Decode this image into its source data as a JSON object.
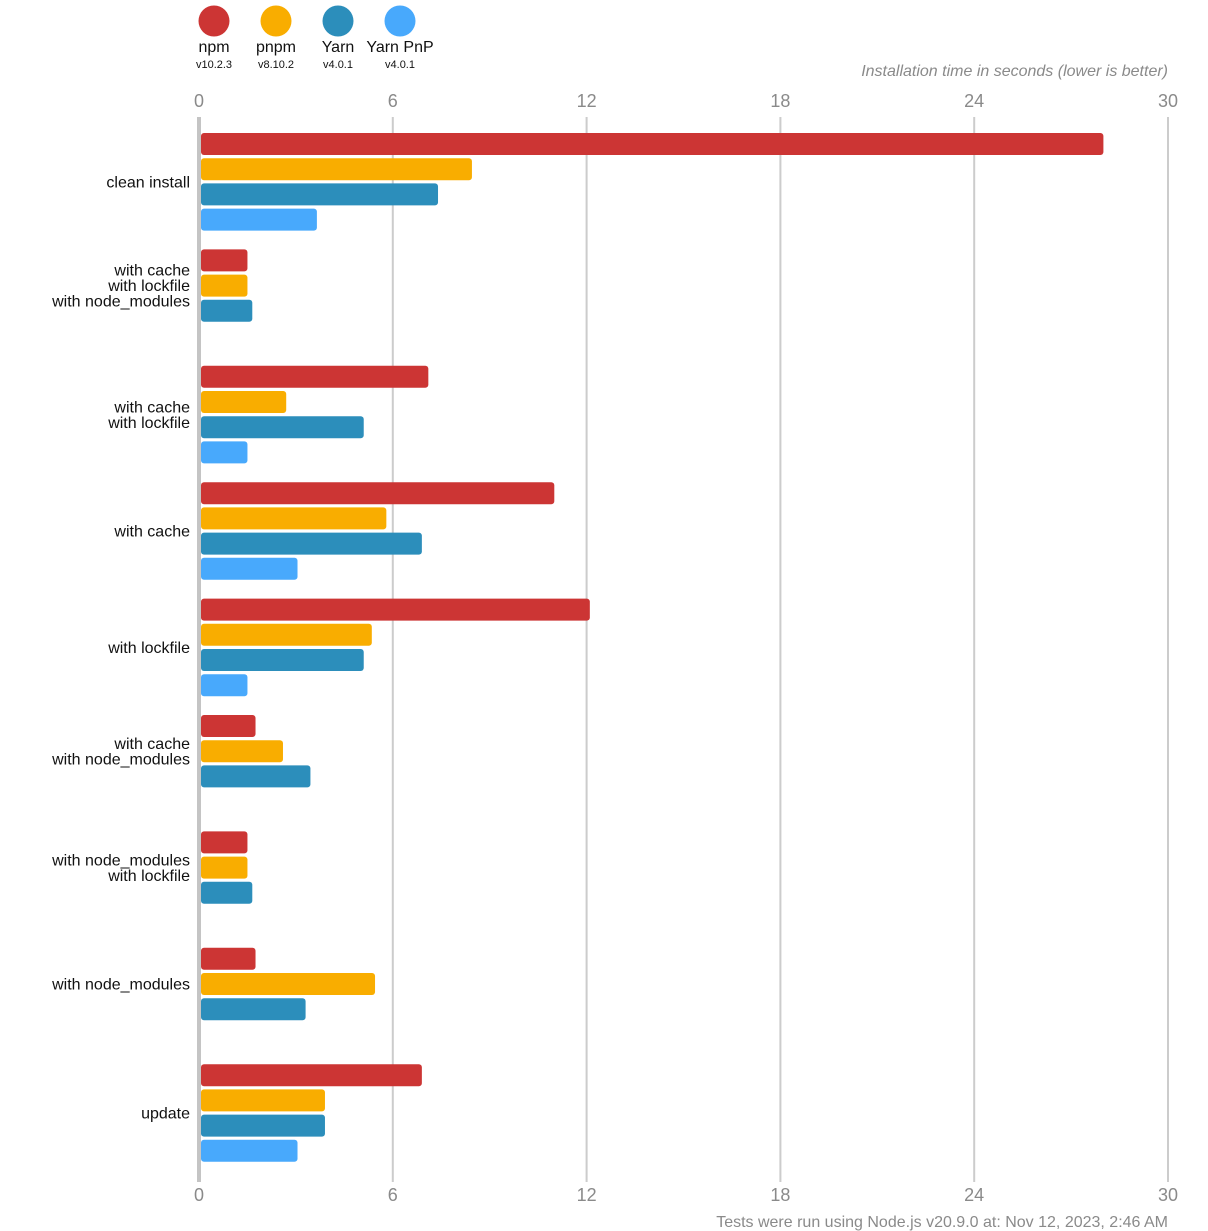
{
  "chart_data": {
    "type": "bar",
    "orientation": "horizontal",
    "subtitle": "Installation time in seconds (lower is better)",
    "footnote": "Tests were run using Node.js v20.9.0 at: Nov 12, 2023, 2:46 AM",
    "xlim": [
      0,
      30
    ],
    "xticks": [
      0,
      6,
      12,
      18,
      24,
      30
    ],
    "legend_position": "top-left",
    "grid": true,
    "series": [
      {
        "name": "npm",
        "version": "v10.2.3",
        "color": "#cc3534",
        "values": [
          28.0,
          1.5,
          7.1,
          11.0,
          12.1,
          1.75,
          1.5,
          1.75,
          6.9
        ]
      },
      {
        "name": "pnpm",
        "version": "v8.10.2",
        "color": "#f9ad00",
        "values": [
          8.45,
          1.5,
          2.7,
          5.8,
          5.35,
          2.6,
          1.5,
          5.45,
          3.9
        ]
      },
      {
        "name": "Yarn",
        "version": "v4.0.1",
        "color": "#2c8ebb",
        "values": [
          7.4,
          1.65,
          5.1,
          6.9,
          5.1,
          3.45,
          1.65,
          3.3,
          3.9
        ]
      },
      {
        "name": "Yarn PnP",
        "version": "v4.0.1",
        "color": "#48a9fc",
        "values": [
          3.65,
          null,
          1.5,
          3.05,
          1.5,
          null,
          null,
          null,
          3.05
        ]
      }
    ],
    "categories": [
      [
        "clean install"
      ],
      [
        "with cache",
        "with lockfile",
        "with node_modules"
      ],
      [
        "with cache",
        "with lockfile"
      ],
      [
        "with cache"
      ],
      [
        "with lockfile"
      ],
      [
        "with cache",
        "with node_modules"
      ],
      [
        "with node_modules",
        "with lockfile"
      ],
      [
        "with node_modules"
      ],
      [
        "update"
      ]
    ]
  }
}
